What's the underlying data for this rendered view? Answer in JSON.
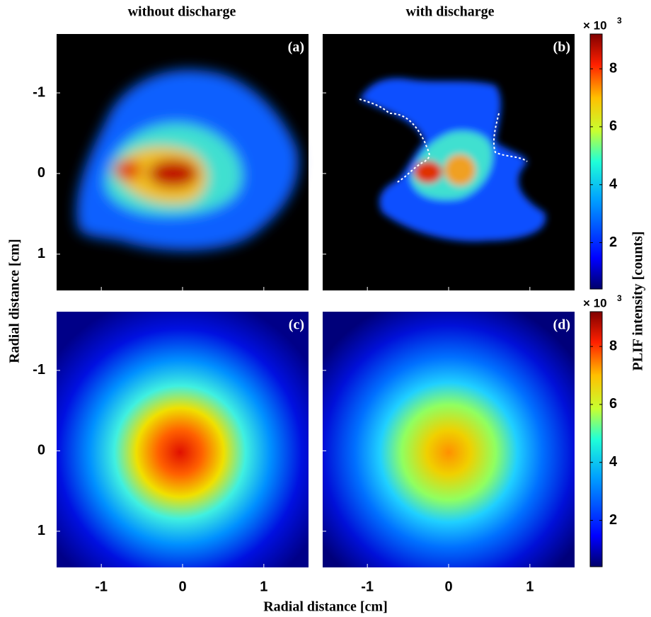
{
  "figure": {
    "column_titles": [
      "without discharge",
      "with discharge"
    ],
    "xlabel": "Radial distance [cm]",
    "ylabel": "Radial distance [cm]",
    "colorbar_label": "PLIF intensity [counts]"
  },
  "chart_data": [
    {
      "type": "heatmap",
      "label": "(a)",
      "xlim": [
        -1.55,
        1.55
      ],
      "ylim": [
        -1.73,
        1.45
      ],
      "y_inverted": true,
      "xticks": [
        -1,
        0,
        1
      ],
      "yticks": [
        -1,
        0,
        1
      ]
    },
    {
      "type": "heatmap",
      "label": "(b)",
      "xlim": [
        -1.55,
        1.55
      ],
      "ylim": [
        -1.73,
        1.45
      ],
      "y_inverted": true,
      "xticks": [
        -1,
        0,
        1
      ],
      "yticks": [
        -1,
        0,
        1
      ]
    },
    {
      "type": "heatmap",
      "label": "(c)",
      "xlim": [
        -1.55,
        1.55
      ],
      "ylim": [
        -1.73,
        1.45
      ],
      "y_inverted": true,
      "xticks": [
        -1,
        0,
        1
      ],
      "yticks": [
        -1,
        0,
        1
      ]
    },
    {
      "type": "heatmap",
      "label": "(d)",
      "xlim": [
        -1.55,
        1.55
      ],
      "ylim": [
        -1.73,
        1.45
      ],
      "y_inverted": true,
      "xticks": [
        -1,
        0,
        1
      ],
      "yticks": [
        -1,
        0,
        1
      ]
    }
  ],
  "colorbars": [
    {
      "multiplier": "× 10",
      "exponent": "3",
      "clim": [
        0.4,
        9.2
      ],
      "ticks": [
        2,
        4,
        6,
        8
      ]
    },
    {
      "multiplier": "× 10",
      "exponent": "3",
      "clim": [
        0.4,
        9.2
      ],
      "ticks": [
        2,
        4,
        6,
        8
      ]
    }
  ]
}
